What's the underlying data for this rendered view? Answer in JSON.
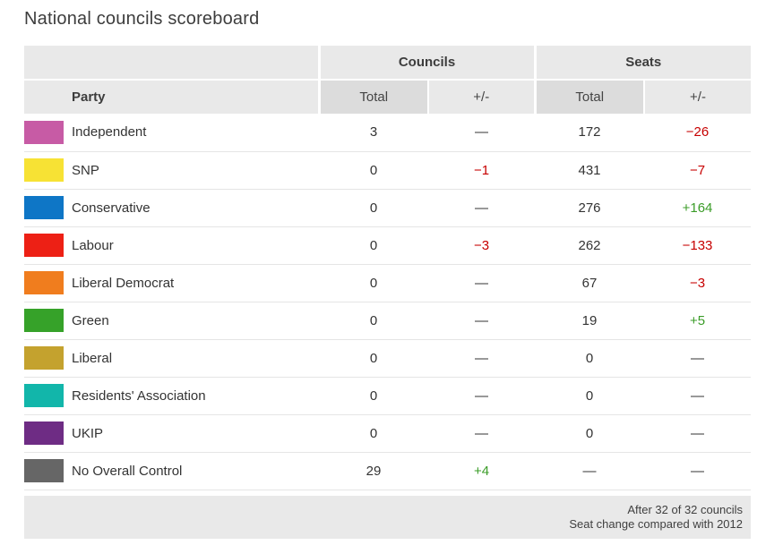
{
  "page": {
    "title": "National councils scoreboard"
  },
  "table": {
    "groups": {
      "councils": "Councils",
      "seats": "Seats"
    },
    "headers": {
      "party": "Party",
      "councils_total": "Total",
      "councils_change": "+/-",
      "seats_total": "Total",
      "seats_change": "+/-"
    },
    "rows": [
      {
        "party": "Independent",
        "color": "#C75BA5",
        "councils_total": "3",
        "councils_change": "—",
        "councils_change_tone": "none",
        "seats_total": "172",
        "seats_change": "−26",
        "seats_change_tone": "negative"
      },
      {
        "party": "SNP",
        "color": "#F7E234",
        "councils_total": "0",
        "councils_change": "−1",
        "councils_change_tone": "negative",
        "seats_total": "431",
        "seats_change": "−7",
        "seats_change_tone": "negative"
      },
      {
        "party": "Conservative",
        "color": "#0E76C6",
        "councils_total": "0",
        "councils_change": "—",
        "councils_change_tone": "none",
        "seats_total": "276",
        "seats_change": "+164",
        "seats_change_tone": "positive"
      },
      {
        "party": "Labour",
        "color": "#ED2015",
        "councils_total": "0",
        "councils_change": "−3",
        "councils_change_tone": "negative",
        "seats_total": "262",
        "seats_change": "−133",
        "seats_change_tone": "negative"
      },
      {
        "party": "Liberal Democrat",
        "color": "#F07D1E",
        "councils_total": "0",
        "councils_change": "—",
        "councils_change_tone": "none",
        "seats_total": "67",
        "seats_change": "−3",
        "seats_change_tone": "negative"
      },
      {
        "party": "Green",
        "color": "#36A229",
        "councils_total": "0",
        "councils_change": "—",
        "councils_change_tone": "none",
        "seats_total": "19",
        "seats_change": "+5",
        "seats_change_tone": "positive"
      },
      {
        "party": "Liberal",
        "color": "#C4A22E",
        "councils_total": "0",
        "councils_change": "—",
        "councils_change_tone": "none",
        "seats_total": "0",
        "seats_change": "—",
        "seats_change_tone": "none"
      },
      {
        "party": "Residents' Association",
        "color": "#12B6AA",
        "councils_total": "0",
        "councils_change": "—",
        "councils_change_tone": "none",
        "seats_total": "0",
        "seats_change": "—",
        "seats_change_tone": "none"
      },
      {
        "party": "UKIP",
        "color": "#6E2C84",
        "councils_total": "0",
        "councils_change": "—",
        "councils_change_tone": "none",
        "seats_total": "0",
        "seats_change": "—",
        "seats_change_tone": "none"
      },
      {
        "party": "No Overall Control",
        "color": "#666666",
        "councils_total": "29",
        "councils_change": "+4",
        "councils_change_tone": "positive",
        "seats_total": "—",
        "seats_change": "—",
        "seats_change_tone": "none"
      }
    ],
    "footnotes": {
      "line1": "After 32 of 32 councils",
      "line2": "Seat change compared with 2012"
    }
  },
  "colors": {
    "negative": "#C70000",
    "positive": "#3B9C28",
    "neutral": "#333333"
  },
  "chart_data": {
    "type": "table",
    "title": "National councils scoreboard",
    "column_groups": [
      {
        "label": "Councils",
        "columns": [
          "Total",
          "+/-"
        ]
      },
      {
        "label": "Seats",
        "columns": [
          "Total",
          "+/-"
        ]
      }
    ],
    "columns": [
      "Party",
      "Councils Total",
      "Councils +/-",
      "Seats Total",
      "Seats +/-"
    ],
    "rows": [
      {
        "party": "Independent",
        "councils_total": 3,
        "councils_change": null,
        "seats_total": 172,
        "seats_change": -26
      },
      {
        "party": "SNP",
        "councils_total": 0,
        "councils_change": -1,
        "seats_total": 431,
        "seats_change": -7
      },
      {
        "party": "Conservative",
        "councils_total": 0,
        "councils_change": null,
        "seats_total": 276,
        "seats_change": 164
      },
      {
        "party": "Labour",
        "councils_total": 0,
        "councils_change": -3,
        "seats_total": 262,
        "seats_change": -133
      },
      {
        "party": "Liberal Democrat",
        "councils_total": 0,
        "councils_change": null,
        "seats_total": 67,
        "seats_change": -3
      },
      {
        "party": "Green",
        "councils_total": 0,
        "councils_change": null,
        "seats_total": 19,
        "seats_change": 5
      },
      {
        "party": "Liberal",
        "councils_total": 0,
        "councils_change": null,
        "seats_total": 0,
        "seats_change": null
      },
      {
        "party": "Residents' Association",
        "councils_total": 0,
        "councils_change": null,
        "seats_total": 0,
        "seats_change": null
      },
      {
        "party": "UKIP",
        "councils_total": 0,
        "councils_change": null,
        "seats_total": 0,
        "seats_change": null
      },
      {
        "party": "No Overall Control",
        "councils_total": 29,
        "councils_change": 4,
        "seats_total": null,
        "seats_change": null
      }
    ],
    "notes": [
      "After 32 of 32 councils",
      "Seat change compared with 2012"
    ]
  }
}
